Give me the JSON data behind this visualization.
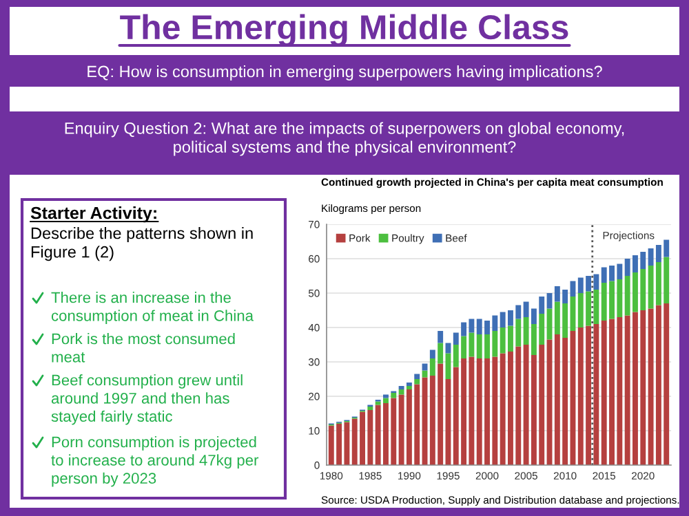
{
  "chart_data": {
    "type": "bar",
    "stacked": true,
    "title": "The Emerging Middle Class",
    "subtitle": "EQ: How is consumption in emerging superpowers having implications?",
    "ylabel": "Kilograms per person",
    "x": [
      1980,
      1981,
      1982,
      1983,
      1984,
      1985,
      1986,
      1987,
      1988,
      1989,
      1990,
      1991,
      1992,
      1993,
      1994,
      1995,
      1996,
      1997,
      1998,
      1999,
      2000,
      2001,
      2002,
      2003,
      2004,
      2005,
      2006,
      2007,
      2008,
      2009,
      2010,
      2011,
      2012,
      2013,
      2014,
      2015,
      2016,
      2017,
      2018,
      2019,
      2020,
      2021,
      2022,
      2023
    ],
    "series": [
      {
        "name": "Pork",
        "color": "#b5403f",
        "values": [
          11.5,
          12,
          12.5,
          13.5,
          15.5,
          16,
          17.5,
          18,
          19.5,
          20.5,
          22,
          23.5,
          25.5,
          26,
          29.5,
          25,
          28.5,
          31,
          31.5,
          31,
          31,
          31.5,
          32.5,
          33,
          34.5,
          35,
          32,
          35,
          36.5,
          38,
          37,
          39,
          40,
          40.5,
          41,
          42,
          42.5,
          43,
          43.5,
          44.5,
          45,
          45.5,
          46.5,
          47
        ]
      },
      {
        "name": "Poultry",
        "color": "#4cbf3f",
        "values": [
          0.3,
          0.3,
          0.3,
          0.3,
          0.3,
          1,
          1,
          1.5,
          1.5,
          1.5,
          1,
          1.5,
          2,
          5,
          6,
          7.5,
          6.5,
          6.5,
          7,
          7,
          7,
          7.5,
          7.5,
          7.5,
          8,
          8,
          9,
          9,
          9,
          9.5,
          10,
          10,
          10,
          10,
          10,
          11,
          11,
          11,
          11.5,
          11.5,
          12,
          12.5,
          12.5,
          13.5
        ]
      },
      {
        "name": "Beef",
        "color": "#3f6fb5",
        "values": [
          0.3,
          0.3,
          0.3,
          0.3,
          0.3,
          0.5,
          0.5,
          1,
          0.5,
          1,
          1,
          1.5,
          2,
          2.5,
          3.5,
          3,
          3.5,
          4,
          4,
          4.5,
          4,
          4.5,
          4.5,
          4.5,
          4,
          4.5,
          4.5,
          5,
          4.5,
          4.5,
          4,
          4.5,
          4.5,
          4.5,
          4.5,
          4.5,
          4.5,
          4.5,
          5,
          5,
          5,
          5,
          5,
          5
        ]
      }
    ],
    "xlim": [
      1979.4,
      2023.6
    ],
    "xticks": [
      1980,
      1985,
      1990,
      1995,
      2000,
      2005,
      2010,
      2015,
      2020
    ],
    "ylim": [
      0,
      70
    ],
    "yticks": [
      0,
      10,
      20,
      30,
      40,
      50,
      60,
      70
    ],
    "grid": "y",
    "legend": "top left",
    "ref_lines": [
      {
        "axis": "x",
        "value": 2013.5,
        "label": "Projections",
        "color": "#555555",
        "line_style": "dotted"
      }
    ],
    "annotations": [
      "Continued growth projected in China's per capita meat consumption",
      "Source: USDA Production, Supply and Distribution database and projections.",
      "Enquiry Question 2: What are the impacts of superpowers on global economy, political systems and the physical environment?",
      "Starter Activity:",
      "Describe the patterns shown in Figure 1 (2)",
      "There is an increase in the consumption of meat in China",
      "Pork is the most consumed meat",
      "Beef consumption grew until around 1997 and then has stayed fairly static",
      "Porn consumption is projected to increase to around 47kg per person by 2023"
    ]
  }
}
